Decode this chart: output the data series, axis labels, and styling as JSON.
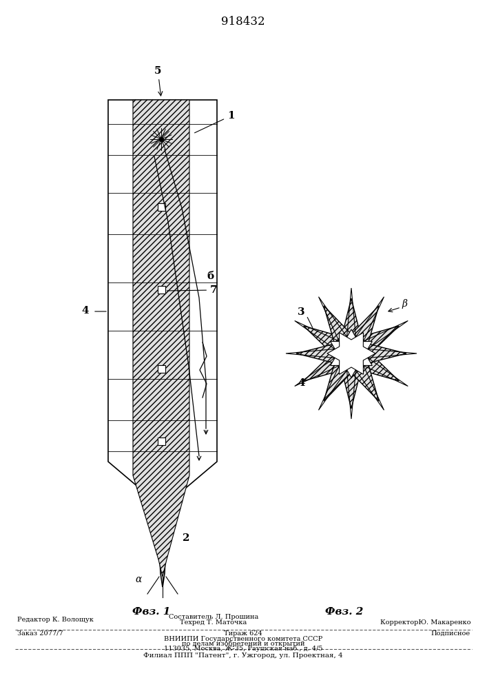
{
  "title": "918432",
  "fig1_label": "Фвз. 1",
  "fig2_label": "Фвз. 2",
  "bg_color": "#ffffff",
  "footer_line1_left": "Редактор К. Волощук",
  "footer_line1_center_top": "Составитель Л. Прошина",
  "footer_line1_center_bot": "Техред Т. Маточка",
  "footer_line1_right": "КорректорЮ. Макаренко",
  "footer_line2_left": "Заказ 2077/7",
  "footer_line2_center": "Тираж 624",
  "footer_line2_right": "Подписное",
  "footer_line3": "ВНИИПИ Государственного комитета СССР",
  "footer_line4": "по делам изобретений и открытий",
  "footer_line5": "113035, Москва, Ж-35, Раушская наб., д. 4/5",
  "footer_line6": "Филиал ППП \"Патент\", г. Ужгород, ул. Проектная, 4"
}
